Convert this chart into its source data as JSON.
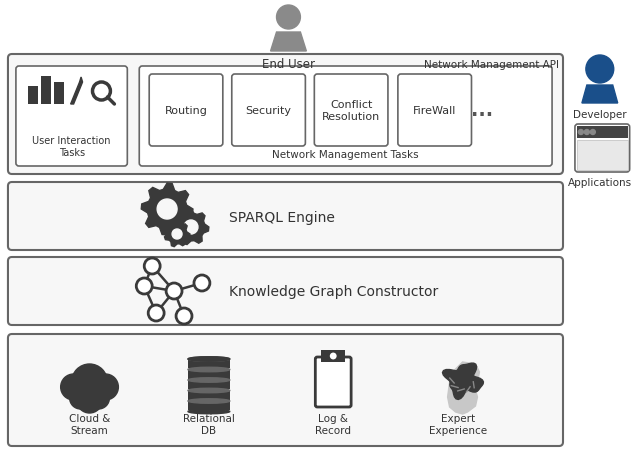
{
  "background_color": "#ffffff",
  "border_color": "#666666",
  "figure_width": 6.4,
  "figure_height": 4.52,
  "end_user_label": "End User",
  "developer_label": "Developer",
  "applications_label": "Applications",
  "api_label": "Network Management API",
  "ui_tasks_label": "User Interaction\nTasks",
  "nm_tasks_label": "Network Management Tasks",
  "routing_label": "Routing",
  "security_label": "Security",
  "conflict_label": "Conflict\nResolution",
  "firewall_label": "FireWall",
  "sparql_label": "SPARQL Engine",
  "kg_label": "Knowledge Graph Constructor",
  "cloud_label": "Cloud &\nStream",
  "db_label": "Relational\nDB",
  "log_label": "Log &\nRecord",
  "expert_label": "Expert\nExperience",
  "icon_dark": "#3a3a3a",
  "icon_gray": "#8a8a8a",
  "icon_light_gray": "#c0c0c0",
  "developer_blue": "#1a4f8a",
  "section_bg": "#f7f7f7"
}
